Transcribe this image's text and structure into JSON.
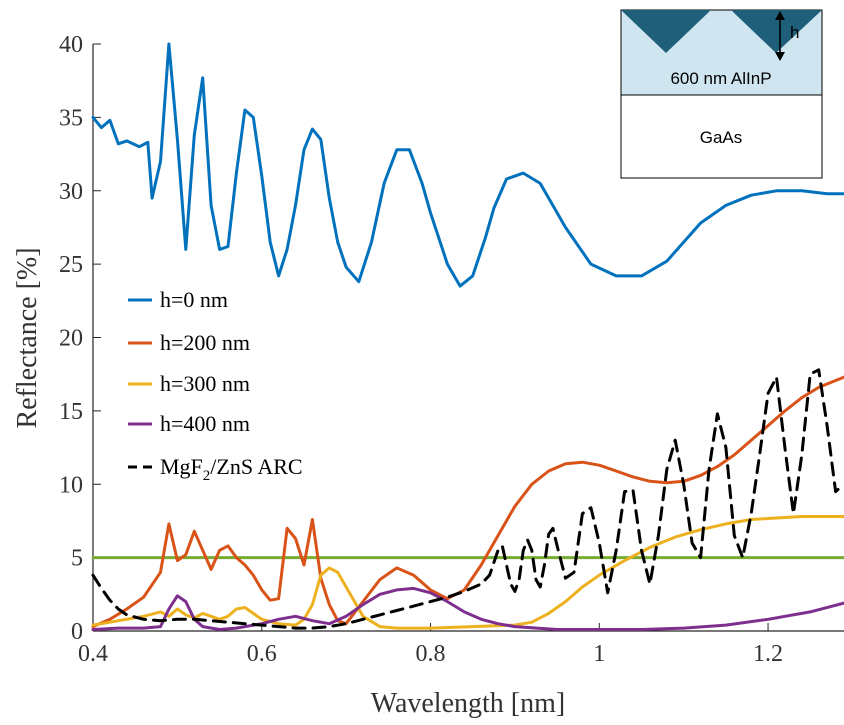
{
  "chart_data": {
    "type": "line",
    "xlabel": "Wavelength [nm]",
    "ylabel": "Reflectance [%]",
    "xlim": [
      0.4,
      1.29
    ],
    "ylim": [
      0,
      40
    ],
    "xticks": [
      0.4,
      0.6,
      0.8,
      1,
      1.2
    ],
    "xtick_labels": [
      "0.4",
      "0.6",
      "0.8",
      "1",
      "1.2"
    ],
    "yticks": [
      0,
      5,
      10,
      15,
      20,
      25,
      30,
      35,
      40
    ],
    "ytick_labels": [
      "0",
      "5",
      "10",
      "15",
      "20",
      "25",
      "30",
      "35",
      "40"
    ],
    "grid": false,
    "legend_placement": "center-left",
    "series": [
      {
        "name": "h=0 nm",
        "color": "#0072BD",
        "style": "solid",
        "x": [
          0.4,
          0.41,
          0.42,
          0.43,
          0.44,
          0.455,
          0.465,
          0.47,
          0.48,
          0.49,
          0.5,
          0.51,
          0.52,
          0.53,
          0.54,
          0.55,
          0.56,
          0.57,
          0.58,
          0.59,
          0.6,
          0.61,
          0.62,
          0.63,
          0.64,
          0.65,
          0.66,
          0.67,
          0.68,
          0.69,
          0.7,
          0.715,
          0.73,
          0.745,
          0.76,
          0.775,
          0.79,
          0.8,
          0.82,
          0.835,
          0.85,
          0.865,
          0.875,
          0.89,
          0.91,
          0.93,
          0.96,
          0.99,
          1.02,
          1.05,
          1.08,
          1.1,
          1.12,
          1.15,
          1.18,
          1.21,
          1.24,
          1.27,
          1.29
        ],
        "y": [
          35,
          34.3,
          34.8,
          33.2,
          33.4,
          33.0,
          33.3,
          29.5,
          32.0,
          40.0,
          33.5,
          26.0,
          33.8,
          37.7,
          29.0,
          26.0,
          26.2,
          31.2,
          35.5,
          35.0,
          31.0,
          26.5,
          24.2,
          26.0,
          29.0,
          32.8,
          34.2,
          33.5,
          29.5,
          26.5,
          24.8,
          23.8,
          26.5,
          30.5,
          32.8,
          32.8,
          30.5,
          28.5,
          25.0,
          23.5,
          24.2,
          26.8,
          28.8,
          30.8,
          31.2,
          30.5,
          27.5,
          25.0,
          24.2,
          24.2,
          25.2,
          26.5,
          27.8,
          29.0,
          29.7,
          30.0,
          30.0,
          29.8,
          29.8
        ]
      },
      {
        "name": "h=200 nm",
        "color": "#D95319",
        "style": "solid",
        "x": [
          0.4,
          0.42,
          0.44,
          0.46,
          0.48,
          0.49,
          0.5,
          0.51,
          0.52,
          0.53,
          0.54,
          0.55,
          0.56,
          0.57,
          0.58,
          0.59,
          0.6,
          0.61,
          0.62,
          0.63,
          0.64,
          0.65,
          0.66,
          0.67,
          0.68,
          0.69,
          0.7,
          0.72,
          0.74,
          0.76,
          0.78,
          0.8,
          0.82,
          0.84,
          0.86,
          0.88,
          0.9,
          0.92,
          0.94,
          0.96,
          0.98,
          1.0,
          1.02,
          1.04,
          1.06,
          1.08,
          1.1,
          1.12,
          1.14,
          1.16,
          1.18,
          1.2,
          1.22,
          1.24,
          1.26,
          1.29
        ],
        "y": [
          0.3,
          0.8,
          1.5,
          2.3,
          4.0,
          7.3,
          4.8,
          5.2,
          6.8,
          5.5,
          4.2,
          5.5,
          5.8,
          5.0,
          4.5,
          3.8,
          2.8,
          2.1,
          2.2,
          7.0,
          6.3,
          4.5,
          7.6,
          3.6,
          1.8,
          0.7,
          0.5,
          2.0,
          3.5,
          4.3,
          3.8,
          2.8,
          2.2,
          2.8,
          4.5,
          6.5,
          8.5,
          10.0,
          10.9,
          11.4,
          11.5,
          11.3,
          10.9,
          10.5,
          10.2,
          10.1,
          10.2,
          10.6,
          11.2,
          12.0,
          13.0,
          14.0,
          15.0,
          15.9,
          16.6,
          17.3
        ]
      },
      {
        "name": "h=300 nm",
        "color": "#EDB120",
        "style": "solid",
        "x": [
          0.4,
          0.43,
          0.46,
          0.48,
          0.49,
          0.5,
          0.51,
          0.52,
          0.53,
          0.54,
          0.55,
          0.56,
          0.57,
          0.58,
          0.59,
          0.6,
          0.62,
          0.64,
          0.65,
          0.66,
          0.67,
          0.68,
          0.69,
          0.7,
          0.72,
          0.74,
          0.76,
          0.78,
          0.8,
          0.85,
          0.9,
          0.92,
          0.94,
          0.96,
          0.98,
          1.0,
          1.03,
          1.06,
          1.09,
          1.12,
          1.15,
          1.18,
          1.21,
          1.24,
          1.27,
          1.29
        ],
        "y": [
          0.4,
          0.7,
          1.0,
          1.3,
          1.0,
          1.5,
          1.1,
          0.9,
          1.2,
          1.0,
          0.8,
          1.0,
          1.5,
          1.6,
          1.2,
          0.8,
          0.5,
          0.4,
          0.8,
          1.8,
          3.8,
          4.3,
          4.0,
          3.0,
          1.0,
          0.3,
          0.2,
          0.2,
          0.2,
          0.3,
          0.4,
          0.6,
          1.2,
          2.0,
          3.0,
          3.8,
          4.8,
          5.7,
          6.4,
          6.9,
          7.3,
          7.6,
          7.7,
          7.8,
          7.8,
          7.8
        ]
      },
      {
        "name": "h=400 nm",
        "color": "#7E2F8E",
        "style": "solid",
        "x": [
          0.4,
          0.43,
          0.46,
          0.48,
          0.49,
          0.5,
          0.51,
          0.52,
          0.53,
          0.55,
          0.57,
          0.6,
          0.62,
          0.64,
          0.66,
          0.68,
          0.7,
          0.72,
          0.74,
          0.76,
          0.78,
          0.8,
          0.82,
          0.84,
          0.86,
          0.88,
          0.9,
          0.95,
          1.0,
          1.05,
          1.1,
          1.15,
          1.2,
          1.25,
          1.29
        ],
        "y": [
          0.1,
          0.2,
          0.2,
          0.3,
          1.5,
          2.4,
          2.0,
          0.8,
          0.3,
          0.1,
          0.2,
          0.5,
          0.8,
          1.0,
          0.7,
          0.5,
          1.0,
          1.8,
          2.5,
          2.8,
          2.9,
          2.6,
          2.0,
          1.3,
          0.8,
          0.5,
          0.3,
          0.1,
          0.1,
          0.1,
          0.2,
          0.4,
          0.8,
          1.3,
          1.9
        ]
      },
      {
        "name": "MgF2/ZnS ARC",
        "legend_main": "MgF",
        "legend_sub": "2",
        "legend_tail": "/ZnS ARC",
        "color": "#000000",
        "style": "dashed",
        "x": [
          0.4,
          0.41,
          0.42,
          0.43,
          0.44,
          0.46,
          0.48,
          0.5,
          0.52,
          0.54,
          0.56,
          0.58,
          0.6,
          0.62,
          0.64,
          0.66,
          0.68,
          0.7,
          0.72,
          0.74,
          0.76,
          0.78,
          0.8,
          0.82,
          0.84,
          0.86,
          0.87,
          0.88,
          0.885,
          0.89,
          0.895,
          0.9,
          0.905,
          0.91,
          0.915,
          0.92,
          0.925,
          0.93,
          0.935,
          0.94,
          0.945,
          0.95,
          0.96,
          0.97,
          0.98,
          0.99,
          1.0,
          1.01,
          1.02,
          1.03,
          1.04,
          1.05,
          1.06,
          1.07,
          1.08,
          1.09,
          1.1,
          1.11,
          1.12,
          1.13,
          1.14,
          1.15,
          1.16,
          1.17,
          1.18,
          1.19,
          1.2,
          1.21,
          1.22,
          1.23,
          1.24,
          1.25,
          1.26,
          1.27,
          1.28,
          1.29
        ],
        "y": [
          3.8,
          2.9,
          2.1,
          1.5,
          1.1,
          0.8,
          0.7,
          0.8,
          0.8,
          0.7,
          0.6,
          0.5,
          0.4,
          0.3,
          0.2,
          0.2,
          0.3,
          0.5,
          0.8,
          1.1,
          1.4,
          1.7,
          2.0,
          2.3,
          2.7,
          3.2,
          3.8,
          5.5,
          5.8,
          4.5,
          3.2,
          2.7,
          3.5,
          5.5,
          6.2,
          5.5,
          3.5,
          3.0,
          4.5,
          6.6,
          7.0,
          5.8,
          3.6,
          4.0,
          8.0,
          8.4,
          6.0,
          2.6,
          5.5,
          9.5,
          9.6,
          5.5,
          3.2,
          6.5,
          11.0,
          13.0,
          10.0,
          6.0,
          5.0,
          11.0,
          14.8,
          12.5,
          6.5,
          5.0,
          8.0,
          12.0,
          16.2,
          17.3,
          12.5,
          8.0,
          12.0,
          17.5,
          17.8,
          14.0,
          9.5,
          10.0
        ]
      },
      {
        "name": "",
        "color": "#77AC30",
        "style": "solid",
        "x": [
          0.4,
          1.29
        ],
        "y": [
          5,
          5
        ]
      }
    ]
  },
  "inset": {
    "top_layer_label": "600 nm AlInP",
    "height_label": "h",
    "substrate_label": "GaAs",
    "layer_color": "#CFE6F0",
    "texture_color": "#1F5F7A"
  }
}
